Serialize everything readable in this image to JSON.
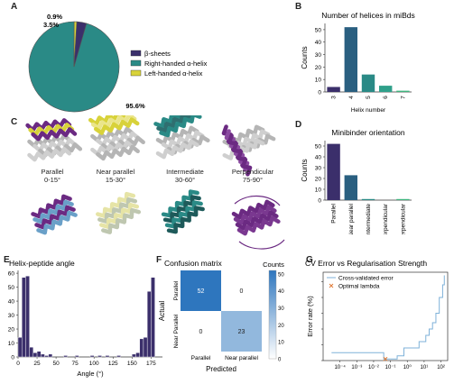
{
  "panels": {
    "A": "A",
    "B": "B",
    "C": "C",
    "D": "D",
    "E": "E",
    "F": "F",
    "G": "G"
  },
  "colors": {
    "purple": "#3b2f6b",
    "darkteal": "#2a5f80",
    "teal": "#2a8a86",
    "green": "#3fb57e",
    "yellow": "#d8d23a",
    "violet": "#6b2a82"
  },
  "panel_C": {
    "labels": [
      {
        "name": "Parallel",
        "range": "0-15°"
      },
      {
        "name": "Near parallel",
        "range": "15-30°"
      },
      {
        "name": "Intermediate",
        "range": "30-60°"
      },
      {
        "name": "Perpendicular",
        "range": "75-90°"
      }
    ]
  },
  "chart_data": [
    {
      "id": "A",
      "type": "pie",
      "labels": [
        "β-sheets",
        "Right-handed α-helix",
        "Left-handed α-helix"
      ],
      "values": [
        3.5,
        95.6,
        0.9
      ],
      "value_labels": [
        "3.5%",
        "95.6%",
        "0.9%"
      ],
      "colors": [
        "#3b2f6b",
        "#2a8a86",
        "#d8d23a"
      ],
      "legend_position": "right"
    },
    {
      "id": "B",
      "type": "bar",
      "title": "Number of helices in miBds",
      "xlabel": "Helix number",
      "ylabel": "Counts",
      "categories": [
        "3",
        "4",
        "5",
        "6",
        "7"
      ],
      "values": [
        4,
        52,
        14,
        5,
        1
      ],
      "ylim": [
        0,
        55
      ],
      "yticks": [
        0,
        10,
        20,
        30,
        40,
        50
      ],
      "colors": [
        "#3b2f6b",
        "#2a5f80",
        "#2a8a86",
        "#2fa08a",
        "#3fb57e"
      ]
    },
    {
      "id": "D",
      "type": "bar",
      "title": "Minibinder orientation",
      "ylabel": "Counts",
      "categories": [
        "Parallel",
        "Near parallel",
        "Intermediate",
        "Near perpendicular",
        "Perpendicular"
      ],
      "values": [
        52,
        23,
        1,
        0,
        1
      ],
      "ylim": [
        0,
        55
      ],
      "yticks": [
        0,
        10,
        20,
        30,
        40,
        50
      ],
      "colors": [
        "#3b2f6b",
        "#2a5f80",
        "#2a8a86",
        "#2fa08a",
        "#3fb57e"
      ]
    },
    {
      "id": "E",
      "type": "bar",
      "title": "Helix-peptide angle",
      "xlabel": "Angle (°)",
      "xlim": [
        0,
        190
      ],
      "xticks": [
        0,
        25,
        50,
        75,
        100,
        125,
        150,
        175
      ],
      "ylim": [
        0,
        62
      ],
      "yticks": [
        0,
        10,
        20,
        30,
        40,
        50,
        60
      ],
      "bins_start": [
        0,
        5,
        10,
        15,
        20,
        25,
        30,
        35,
        40,
        60,
        75,
        95,
        105,
        115,
        130,
        150,
        155,
        160,
        165,
        170,
        175
      ],
      "bin_width": 5,
      "values": [
        14,
        57,
        58,
        7,
        3,
        4,
        2,
        1,
        2,
        1,
        1,
        1,
        1,
        1,
        1,
        2,
        3,
        13,
        14,
        47,
        57
      ],
      "color": "#3b2f6b"
    },
    {
      "id": "F",
      "type": "heatmap",
      "title": "Confusion matrix",
      "xlabel": "Predicted",
      "ylabel": "Actual",
      "x_categories": [
        "Parallel",
        "Near parallel"
      ],
      "y_categories": [
        "Parallel",
        "Near Parallel"
      ],
      "values": [
        [
          52,
          0
        ],
        [
          0,
          23
        ]
      ],
      "colorbar_label": "Counts",
      "colorbar_ticks": [
        0,
        10,
        20,
        30,
        40,
        50
      ],
      "colorbar_range": [
        0,
        52
      ]
    },
    {
      "id": "G",
      "type": "line",
      "title": "CV Error vs Regularisation Strength",
      "ylabel": "Error rate (%)",
      "x_log": true,
      "xtick_labels": [
        "10⁻⁴",
        "10⁻³",
        "10⁻²",
        "10⁻¹",
        "10⁰",
        "10¹",
        "10²"
      ],
      "xtick_exponents": [
        -4,
        -3,
        -2,
        -1,
        0,
        1,
        2
      ],
      "yticks": [
        0,
        5,
        10,
        15,
        20,
        25
      ],
      "ylim": [
        0,
        28
      ],
      "series": [
        {
          "name": "Cross-validated error",
          "color": "#7fb2d9",
          "log10_x": [
            -4.5,
            -1.8,
            -1.6,
            -1.4,
            -1.35,
            -0.8,
            -0.6,
            -0.4,
            -0.2,
            0,
            0.3,
            0.5,
            0.7,
            0.9,
            1.1,
            1.3,
            1.5,
            1.7,
            1.9,
            2.1,
            2.2
          ],
          "y": [
            2.5,
            2.5,
            2.5,
            0.5,
            0.5,
            0.5,
            1.5,
            1.5,
            4,
            4,
            4,
            4,
            6,
            6,
            8,
            10,
            12,
            15,
            20,
            24,
            27
          ]
        },
        {
          "name": "Optimal lambda",
          "color": "#e07b39",
          "marker": "x",
          "log10_x": [
            -1.3
          ],
          "y": [
            0.5
          ]
        }
      ]
    }
  ]
}
